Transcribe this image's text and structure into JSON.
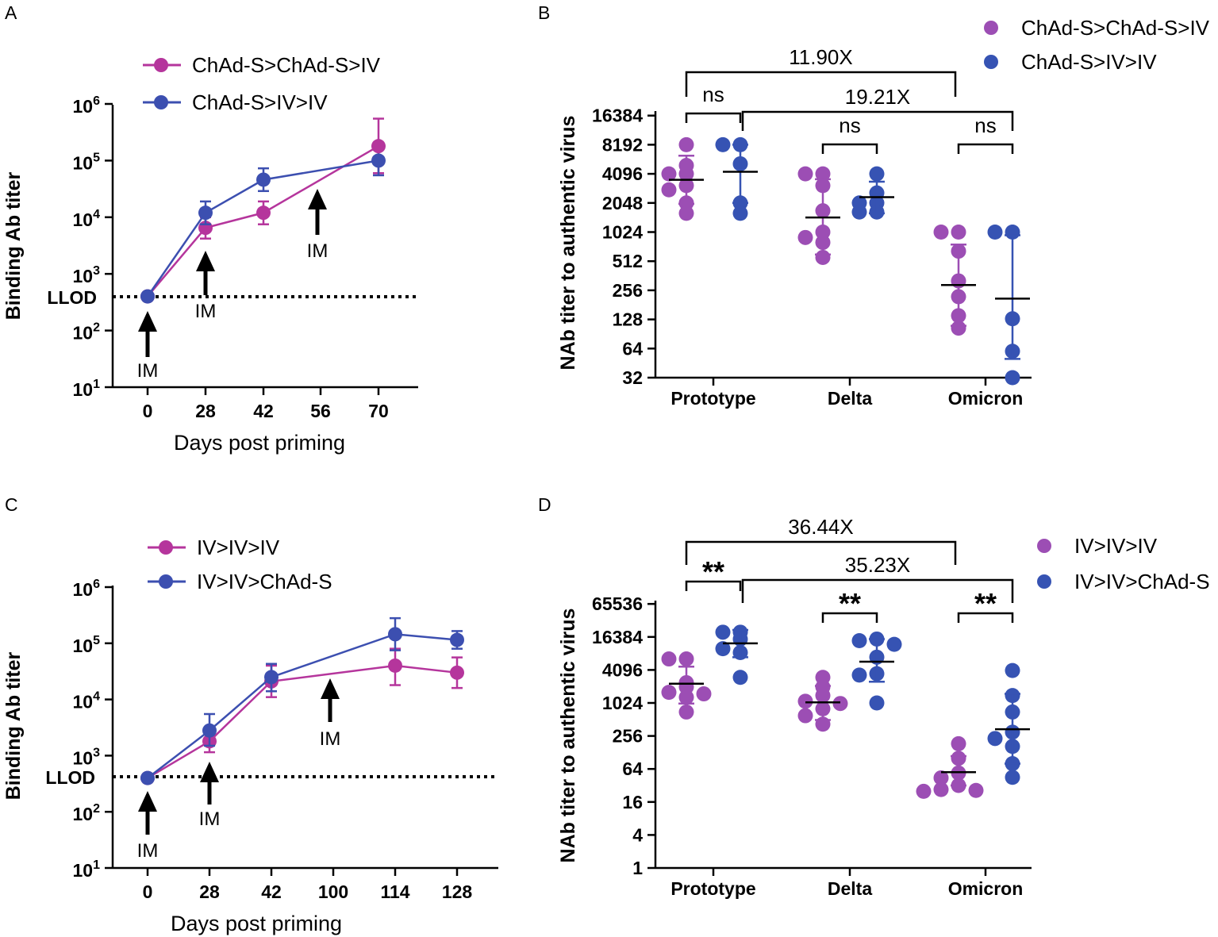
{
  "colors": {
    "magenta": "#b5359c",
    "blue": "#3c4fb0",
    "dot_magenta": "#9c4eb4",
    "dot_blue": "#3653b3"
  },
  "chart_data": [
    {
      "panel": "A",
      "type": "line",
      "xlabel": "Days post priming",
      "ylabel": "Binding Ab titer",
      "yscale": "log10",
      "ylim_exp": [
        1,
        6
      ],
      "ytick_labels": [
        {
          "base": "10",
          "exp": "1"
        },
        {
          "base": "10",
          "exp": "2"
        },
        {
          "base": "10",
          "exp": "3"
        },
        {
          "base": "10",
          "exp": "4"
        },
        {
          "base": "10",
          "exp": "5"
        },
        {
          "base": "10",
          "exp": "6"
        }
      ],
      "x_categories": [
        "0",
        "28",
        "42",
        "56",
        "70"
      ],
      "llod_label": "LLOD",
      "llod_value": 400,
      "series": [
        {
          "name": "ChAd-S>ChAd-S>IV",
          "color": "magenta",
          "points": [
            {
              "x": "0",
              "y": 400,
              "lo": 400,
              "hi": 400
            },
            {
              "x": "28",
              "y": 6500,
              "lo": 4200,
              "hi": 10000
            },
            {
              "x": "42",
              "y": 12000,
              "lo": 7500,
              "hi": 19000
            },
            {
              "x": "70",
              "y": 180000,
              "lo": 60000,
              "hi": 550000
            }
          ]
        },
        {
          "name": "ChAd-S>IV>IV",
          "color": "blue",
          "points": [
            {
              "x": "0",
              "y": 400,
              "lo": 400,
              "hi": 400
            },
            {
              "x": "28",
              "y": 12000,
              "lo": 7500,
              "hi": 19000
            },
            {
              "x": "42",
              "y": 46000,
              "lo": 29000,
              "hi": 73000
            },
            {
              "x": "70",
              "y": 100000,
              "lo": 55000,
              "hi": 105000
            }
          ]
        }
      ],
      "arrows": [
        {
          "x": "0",
          "label": "IM"
        },
        {
          "x": "28",
          "label": "IM"
        },
        {
          "x": "56",
          "label": "IM"
        }
      ]
    },
    {
      "panel": "B",
      "type": "scatter",
      "ylabel": "NAb titer to authentic virus",
      "yscale": "log2",
      "ytick_labels": [
        "32",
        "64",
        "128",
        "256",
        "512",
        "1024",
        "2048",
        "4096",
        "8192",
        "16384"
      ],
      "groups": [
        "Prototype",
        "Delta",
        "Omicron"
      ],
      "series": [
        {
          "name": "ChAd-S>ChAd-S>IV",
          "color": "dot_magenta"
        },
        {
          "name": "ChAd-S>IV>IV",
          "color": "dot_blue"
        }
      ],
      "data": [
        {
          "group": "Prototype",
          "series": "ChAd-S>ChAd-S>IV",
          "mean": 3550,
          "lo": 2000,
          "hi": 6300,
          "points": [
            8192,
            5000,
            4096,
            4096,
            3100,
            2800,
            2048,
            1600
          ]
        },
        {
          "group": "Prototype",
          "series": "ChAd-S>IV>IV",
          "mean": 4300,
          "lo": 2048,
          "hi": 8192,
          "points": [
            8192,
            8192,
            5200,
            2048,
            1600
          ]
        },
        {
          "group": "Delta",
          "series": "ChAd-S>ChAd-S>IV",
          "mean": 1450,
          "lo": 600,
          "hi": 3600,
          "points": [
            4096,
            4096,
            3100,
            1700,
            1024,
            900,
            800,
            560
          ]
        },
        {
          "group": "Delta",
          "series": "ChAd-S>IV>IV",
          "mean": 2350,
          "lo": 1600,
          "hi": 3400,
          "points": [
            4096,
            2600,
            2048,
            2048,
            1650,
            1650
          ]
        },
        {
          "group": "Omicron",
          "series": "ChAd-S>ChAd-S>IV",
          "mean": 290,
          "lo": 110,
          "hi": 760,
          "points": [
            1024,
            1024,
            650,
            320,
            220,
            140,
            104
          ]
        },
        {
          "group": "Omicron",
          "series": "ChAd-S>IV>IV",
          "mean": 210,
          "lo": 50,
          "hi": 950,
          "points": [
            1024,
            1024,
            130,
            60,
            32
          ]
        }
      ],
      "comparisons": [
        {
          "label": "11.90X",
          "from": "Prototype",
          "to": "Omicron",
          "series": "ChAd-S>ChAd-S>IV"
        },
        {
          "label": "19.21X",
          "from": "Prototype",
          "to": "Omicron",
          "series": "ChAd-S>IV>IV"
        },
        {
          "label": "ns",
          "group": "Prototype"
        },
        {
          "label": "ns",
          "group": "Delta"
        },
        {
          "label": "ns",
          "group": "Omicron"
        }
      ]
    },
    {
      "panel": "C",
      "type": "line",
      "xlabel": "Days post priming",
      "ylabel": "Binding Ab titer",
      "yscale": "log10",
      "ylim_exp": [
        1,
        6
      ],
      "ytick_labels": [
        {
          "base": "10",
          "exp": "1"
        },
        {
          "base": "10",
          "exp": "2"
        },
        {
          "base": "10",
          "exp": "3"
        },
        {
          "base": "10",
          "exp": "4"
        },
        {
          "base": "10",
          "exp": "5"
        },
        {
          "base": "10",
          "exp": "6"
        }
      ],
      "x_categories": [
        "0",
        "28",
        "42",
        "100",
        "114",
        "128"
      ],
      "llod_label": "LLOD",
      "llod_value": 400,
      "series": [
        {
          "name": "IV>IV>IV",
          "color": "magenta",
          "points": [
            {
              "x": "0",
              "y": 400,
              "lo": 400,
              "hi": 400
            },
            {
              "x": "28",
              "y": 1800,
              "lo": 1150,
              "hi": 2800
            },
            {
              "x": "42",
              "y": 21000,
              "lo": 11000,
              "hi": 40000
            },
            {
              "x": "114",
              "y": 40000,
              "lo": 18000,
              "hi": 80000
            },
            {
              "x": "128",
              "y": 30000,
              "lo": 16000,
              "hi": 56000
            }
          ]
        },
        {
          "name": "IV>IV>ChAd-S",
          "color": "blue",
          "points": [
            {
              "x": "0",
              "y": 400,
              "lo": 400,
              "hi": 400
            },
            {
              "x": "28",
              "y": 2800,
              "lo": 1500,
              "hi": 5500
            },
            {
              "x": "42",
              "y": 25000,
              "lo": 14000,
              "hi": 43000
            },
            {
              "x": "114",
              "y": 145000,
              "lo": 75000,
              "hi": 280000
            },
            {
              "x": "128",
              "y": 115000,
              "lo": 80000,
              "hi": 165000
            }
          ]
        }
      ],
      "arrows": [
        {
          "x": "0",
          "label": "IM"
        },
        {
          "x": "28",
          "label": "IM"
        },
        {
          "x": "100",
          "label": "IM"
        }
      ]
    },
    {
      "panel": "D",
      "type": "scatter",
      "ylabel": "NAb titer to authentic virus",
      "yscale": "log2",
      "ytick_labels": [
        "1",
        "4",
        "16",
        "64",
        "256",
        "1024",
        "4096",
        "16384",
        "65536"
      ],
      "groups": [
        "Prototype",
        "Delta",
        "Omicron"
      ],
      "series": [
        {
          "name": "IV>IV>IV",
          "color": "dot_magenta"
        },
        {
          "name": "IV>IV>ChAd-S",
          "color": "dot_blue"
        }
      ],
      "data": [
        {
          "group": "Prototype",
          "series": "IV>IV>IV",
          "mean": 2300,
          "lo": 1000,
          "hi": 4700,
          "points": [
            6500,
            6500,
            2400,
            2000,
            1600,
            1500,
            1300,
            700
          ]
        },
        {
          "group": "Prototype",
          "series": "IV>IV>ChAd-S",
          "mean": 12500,
          "lo": 7000,
          "hi": 22000,
          "points": [
            20000,
            20000,
            15000,
            10000,
            8500,
            3000
          ]
        },
        {
          "group": "Delta",
          "series": "IV>IV>IV",
          "mean": 1050,
          "lo": 500,
          "hi": 2100,
          "points": [
            3000,
            2000,
            1400,
            1100,
            1000,
            800,
            600,
            420
          ]
        },
        {
          "group": "Delta",
          "series": "IV>IV>ChAd-S",
          "mean": 5800,
          "lo": 2500,
          "hi": 15000,
          "points": [
            15000,
            14000,
            12000,
            7000,
            3500,
            3300,
            1024
          ]
        },
        {
          "group": "Omicron",
          "series": "IV>IV>IV",
          "mean": 56,
          "lo": 32,
          "hi": 110,
          "points": [
            185,
            100,
            54,
            44,
            32,
            27,
            26,
            25
          ]
        },
        {
          "group": "Omicron",
          "series": "IV>IV>ChAd-S",
          "mean": 340,
          "lo": 80,
          "hi": 1500,
          "points": [
            4000,
            1400,
            700,
            300,
            230,
            165,
            80,
            45
          ]
        }
      ],
      "comparisons": [
        {
          "label": "36.44X",
          "from": "Prototype",
          "to": "Omicron",
          "series": "IV>IV>IV"
        },
        {
          "label": "35.23X",
          "from": "Prototype",
          "to": "Omicron",
          "series": "IV>IV>ChAd-S"
        },
        {
          "label": "**",
          "group": "Prototype"
        },
        {
          "label": "**",
          "group": "Delta"
        },
        {
          "label": "**",
          "group": "Omicron"
        }
      ]
    }
  ]
}
